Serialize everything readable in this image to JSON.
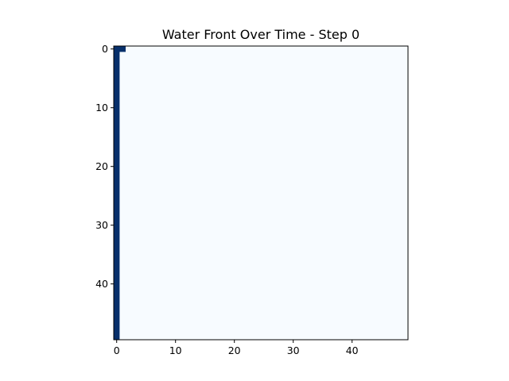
{
  "chart_data": {
    "type": "heatmap",
    "title": "Water Front Over Time - Step 0",
    "xlabel": "",
    "ylabel": "",
    "grid": false,
    "rows": 50,
    "cols": 50,
    "xlim": [
      -0.5,
      49.5
    ],
    "ylim": [
      49.5,
      -0.5
    ],
    "x_ticks": [
      0,
      10,
      20,
      30,
      40
    ],
    "y_ticks": [
      0,
      10,
      20,
      30,
      40
    ],
    "colormap": "Blues",
    "value_range": [
      0,
      1
    ],
    "background_value": 0,
    "water_cells": [
      {
        "row": 0,
        "col": 1,
        "value": 1
      },
      {
        "row": 0,
        "col": 0,
        "value": 1
      }
    ],
    "water_column": {
      "col": 0,
      "row_start": 0,
      "row_end": 49,
      "value": 1
    },
    "colors": {
      "low": "#f7fbff",
      "high": "#08306b"
    }
  }
}
